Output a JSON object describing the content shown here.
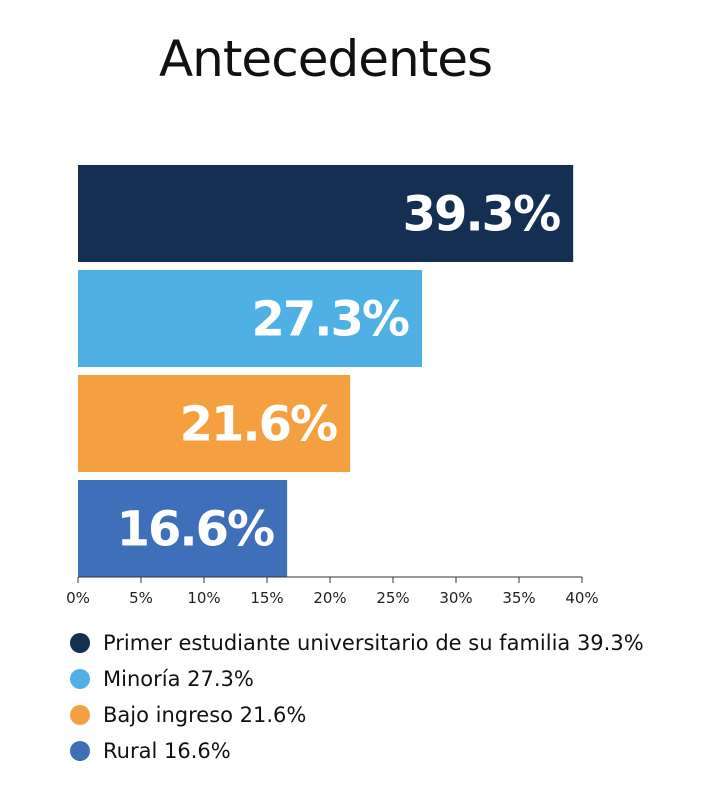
{
  "title": "Antecedentes",
  "chart_data": {
    "type": "bar",
    "orientation": "horizontal",
    "title": "Antecedentes",
    "categories": [
      "Primer estudiante universitario de su familia",
      "Minoría",
      "Bajo ingreso",
      "Rural"
    ],
    "values": [
      39.3,
      27.3,
      21.6,
      16.6
    ],
    "data_labels": [
      "39.3%",
      "27.3%",
      "21.6%",
      "16.6%"
    ],
    "colors": [
      "#142f52",
      "#4fb0e4",
      "#f4a040",
      "#3f6fb8"
    ],
    "xlim": [
      0,
      40
    ],
    "xticks": [
      0,
      5,
      10,
      15,
      20,
      25,
      30,
      35,
      40
    ],
    "xtick_labels": [
      "0%",
      "5%",
      "10%",
      "15%",
      "20%",
      "25%",
      "30%",
      "35%",
      "40%"
    ],
    "grid": false,
    "legend_position": "bottom"
  },
  "legend": [
    {
      "label": "Primer estudiante universitario de su familia 39.3%",
      "color": "#142f52"
    },
    {
      "label": "Minoría 27.3%",
      "color": "#4fb0e4"
    },
    {
      "label": "Bajo ingreso 21.6%",
      "color": "#f4a040"
    },
    {
      "label": "Rural 16.6%",
      "color": "#3f6fb8"
    }
  ]
}
